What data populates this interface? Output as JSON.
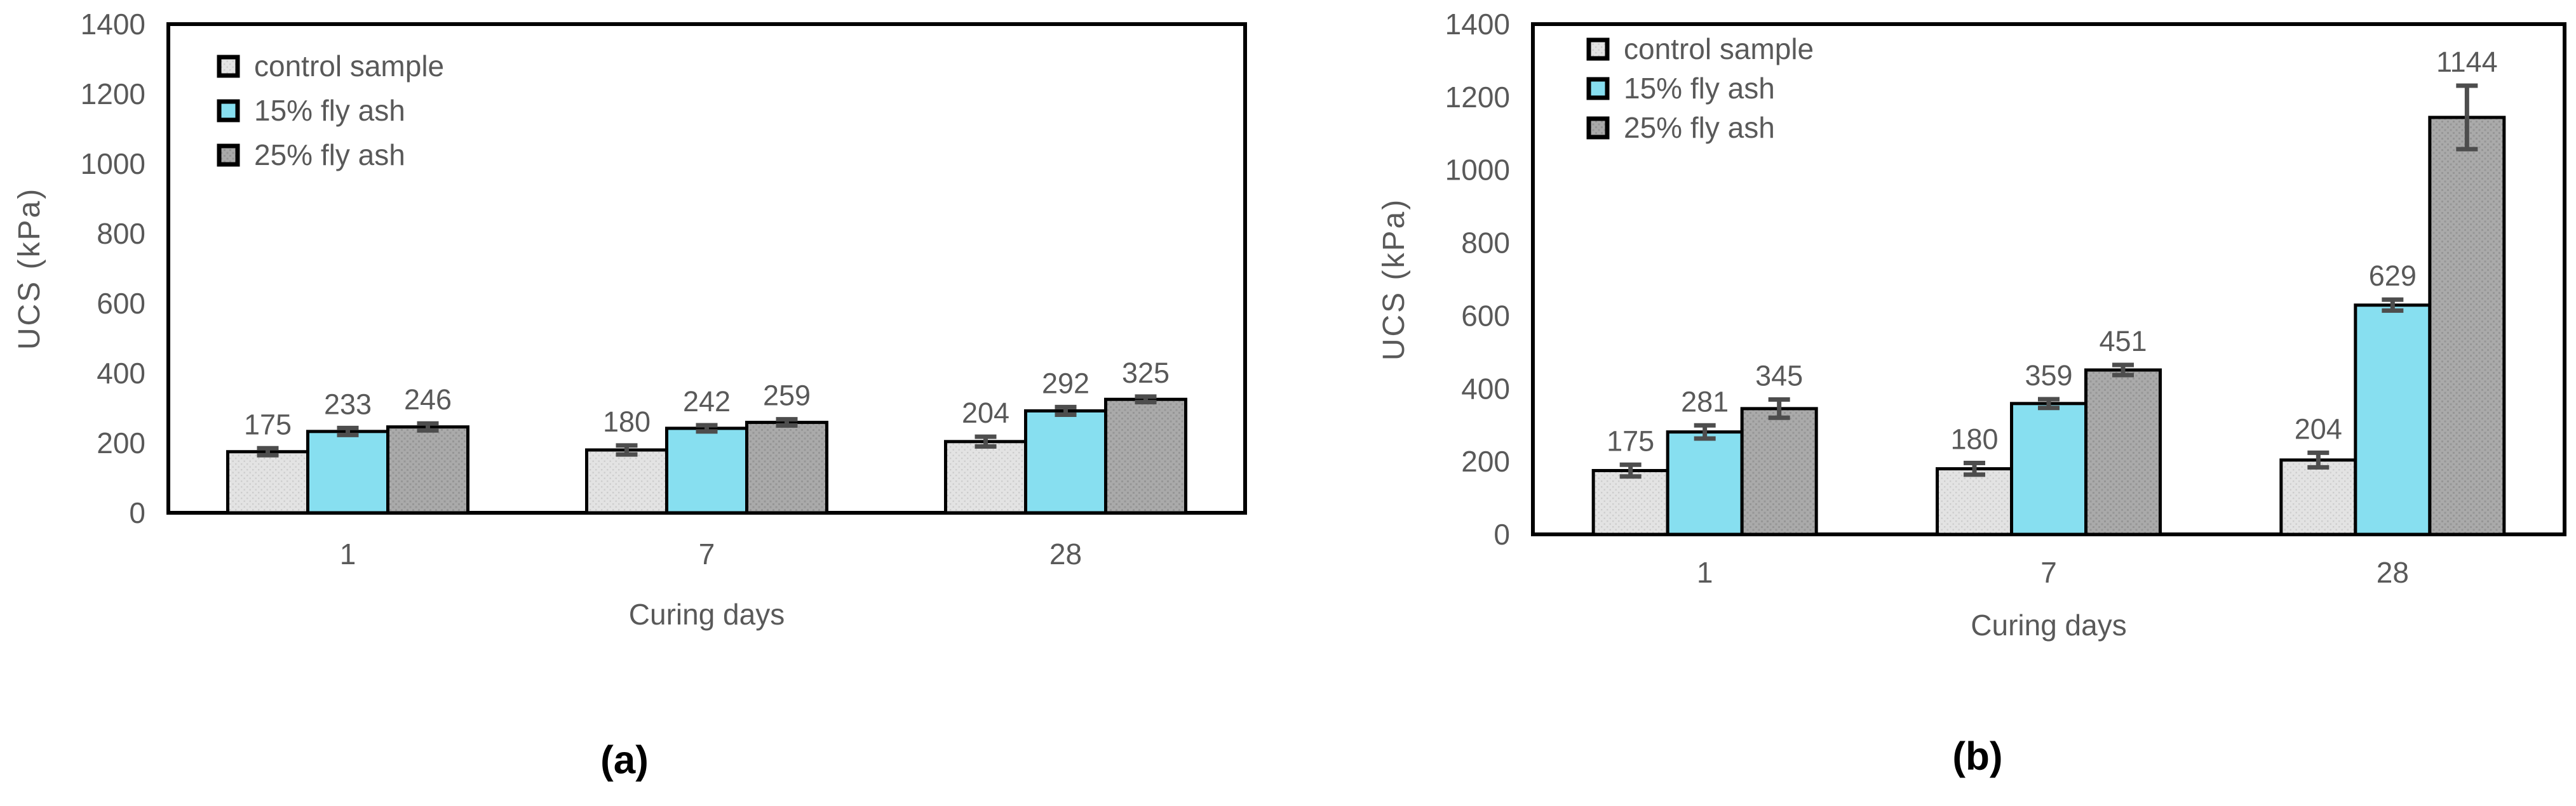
{
  "figure": {
    "background": "#ffffff",
    "text_color": "#595959",
    "axis_color": "#000000",
    "error_bar_color": "#4d4d4d"
  },
  "chart_data": [
    {
      "id": "a",
      "type": "bar",
      "caption": "(a)",
      "xlabel": "Curing days",
      "ylabel": "UCS (kPa)",
      "ylim": [
        0,
        1400
      ],
      "ytick_step": 200,
      "ytick_labels": [
        "0",
        "200",
        "400",
        "600",
        "800",
        "1000",
        "1200",
        "1400"
      ],
      "categories": [
        "1",
        "7",
        "28"
      ],
      "grid": false,
      "legend_position": "top-left",
      "bar_labels": true,
      "series": [
        {
          "name": "control sample",
          "fill": "#e3e3e3",
          "pattern": "dots-light",
          "values": [
            175,
            180,
            204
          ],
          "errors": [
            10,
            13,
            14
          ]
        },
        {
          "name": "15% fly ash",
          "fill": "#87dff0",
          "pattern": null,
          "values": [
            233,
            242,
            292
          ],
          "errors": [
            10,
            9,
            11
          ]
        },
        {
          "name": "25% fly ash",
          "fill": "#aaaaaa",
          "pattern": "dots-dark",
          "values": [
            246,
            259,
            325
          ],
          "errors": [
            10,
            9,
            8
          ]
        }
      ]
    },
    {
      "id": "b",
      "type": "bar",
      "caption": "(b)",
      "xlabel": "Curing days",
      "ylabel": "UCS (kPa)",
      "ylim": [
        0,
        1400
      ],
      "ytick_step": 200,
      "ytick_labels": [
        "0",
        "200",
        "400",
        "600",
        "800",
        "1000",
        "1200",
        "1400"
      ],
      "categories": [
        "1",
        "7",
        "28"
      ],
      "grid": false,
      "legend_position": "top-left",
      "bar_labels": true,
      "series": [
        {
          "name": "control sample",
          "fill": "#e3e3e3",
          "pattern": "dots-light",
          "values": [
            175,
            180,
            204
          ],
          "errors": [
            16,
            16,
            20
          ]
        },
        {
          "name": "15% fly ash",
          "fill": "#87dff0",
          "pattern": null,
          "values": [
            281,
            359,
            629
          ],
          "errors": [
            18,
            12,
            15
          ]
        },
        {
          "name": "25% fly ash",
          "fill": "#aaaaaa",
          "pattern": "dots-dark",
          "values": [
            345,
            451,
            1144
          ],
          "errors": [
            25,
            14,
            87
          ]
        }
      ]
    }
  ]
}
